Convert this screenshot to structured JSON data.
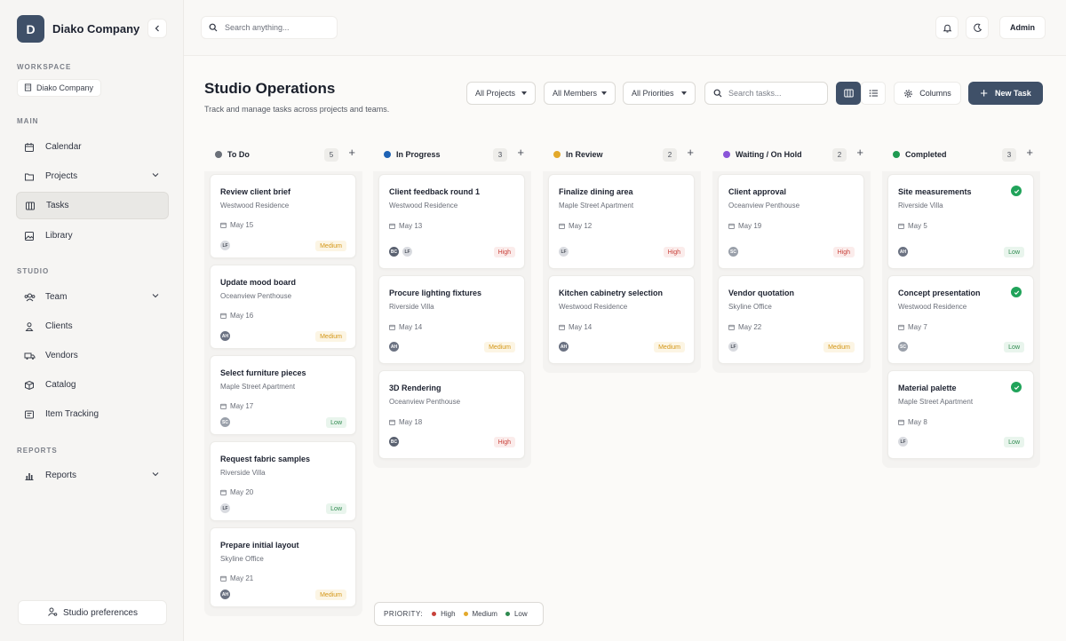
{
  "brand": {
    "initial": "D",
    "name": "Diako Company"
  },
  "workspace": {
    "label": "WORKSPACE",
    "name": "Diako Company"
  },
  "sections": {
    "main": "MAIN",
    "studio": "STUDIO",
    "reports": "REPORTS"
  },
  "nav": {
    "calendar": "Calendar",
    "projects": "Projects",
    "tasks": "Tasks",
    "library": "Library",
    "team": "Team",
    "clients": "Clients",
    "vendors": "Vendors",
    "catalog": "Catalog",
    "item_tracking": "Item Tracking",
    "reports": "Reports"
  },
  "preferences": "Studio preferences",
  "topbar": {
    "search_placeholder": "Search anything...",
    "user": "Admin"
  },
  "page": {
    "title": "Studio Operations",
    "subtitle": "Track and manage tasks across projects and teams."
  },
  "filters": {
    "projects": "All Projects",
    "members": "All Members",
    "priorities": "All Priorities",
    "search_placeholder": "Search tasks..."
  },
  "actions": {
    "columns": "Columns",
    "new_task": "New Task"
  },
  "colors": {
    "accent": "#3f5068",
    "high": "#c8413a",
    "medium": "#d49718",
    "low": "#2e8a4f"
  },
  "columns": [
    {
      "title": "To Do",
      "count": "5",
      "color": "#6b7079",
      "cards": [
        {
          "title": "Review client brief",
          "project": "Westwood Residence",
          "date": "May 15",
          "avatars": [
            "LF"
          ],
          "priority": "Medium"
        },
        {
          "title": "Update mood board",
          "project": "Oceanview Penthouse",
          "date": "May 16",
          "avatars": [
            "AH"
          ],
          "priority": "Medium"
        },
        {
          "title": "Select furniture pieces",
          "project": "Maple Street Apartment",
          "date": "May 17",
          "avatars": [
            "SC"
          ],
          "priority": "Low"
        },
        {
          "title": "Request fabric samples",
          "project": "Riverside Villa",
          "date": "May 20",
          "avatars": [
            "LF"
          ],
          "priority": "Low"
        },
        {
          "title": "Prepare initial layout",
          "project": "Skyline Office",
          "date": "May 21",
          "avatars": [
            "AH"
          ],
          "priority": "Medium"
        }
      ]
    },
    {
      "title": "In Progress",
      "count": "3",
      "color": "#1f63b5",
      "cards": [
        {
          "title": "Client feedback round 1",
          "project": "Westwood Residence",
          "date": "May 13",
          "avatars": [
            "BC",
            "LF"
          ],
          "priority": "High"
        },
        {
          "title": "Procure lighting fixtures",
          "project": "Riverside Villa",
          "date": "May 14",
          "avatars": [
            "AH"
          ],
          "priority": "Medium"
        },
        {
          "title": "3D Rendering",
          "project": "Oceanview Penthouse",
          "date": "May 18",
          "avatars": [
            "BC"
          ],
          "priority": "High"
        }
      ]
    },
    {
      "title": "In Review",
      "count": "2",
      "color": "#e3a92b",
      "cards": [
        {
          "title": "Finalize dining area",
          "project": "Maple Street Apartment",
          "date": "May 12",
          "avatars": [
            "LF"
          ],
          "priority": "High"
        },
        {
          "title": "Kitchen cabinetry selection",
          "project": "Westwood Residence",
          "date": "May 14",
          "avatars": [
            "AH"
          ],
          "priority": "Medium"
        }
      ]
    },
    {
      "title": "Waiting / On Hold",
      "count": "2",
      "color": "#8a55d8",
      "cards": [
        {
          "title": "Client approval",
          "project": "Oceanview Penthouse",
          "date": "May 19",
          "avatars": [
            "SC"
          ],
          "priority": "High"
        },
        {
          "title": "Vendor quotation",
          "project": "Skyline Office",
          "date": "May 22",
          "avatars": [
            "LF"
          ],
          "priority": "Medium"
        }
      ]
    },
    {
      "title": "Completed",
      "count": "3",
      "color": "#1f9a51",
      "cards": [
        {
          "title": "Site measurements",
          "project": "Riverside Villa",
          "date": "May 5",
          "avatars": [
            "AH"
          ],
          "priority": "Low",
          "done": true
        },
        {
          "title": "Concept presentation",
          "project": "Westwood Residence",
          "date": "May 7",
          "avatars": [
            "SC"
          ],
          "priority": "Low",
          "done": true
        },
        {
          "title": "Material palette",
          "project": "Maple Street Apartment",
          "date": "May 8",
          "avatars": [
            "LF"
          ],
          "priority": "Low",
          "done": true
        }
      ]
    }
  ],
  "legend": {
    "label": "PRIORITY:",
    "high": "High",
    "medium": "Medium",
    "low": "Low"
  },
  "icons": {
    "sidebar": [
      "calendar-icon",
      "folder-icon",
      "board-icon",
      "image-icon",
      "team-icon",
      "user-icon",
      "truck-icon",
      "box-icon",
      "tracking-icon",
      "bar-chart-icon"
    ],
    "topbar": [
      "search-icon",
      "bell-icon",
      "moon-icon"
    ]
  }
}
